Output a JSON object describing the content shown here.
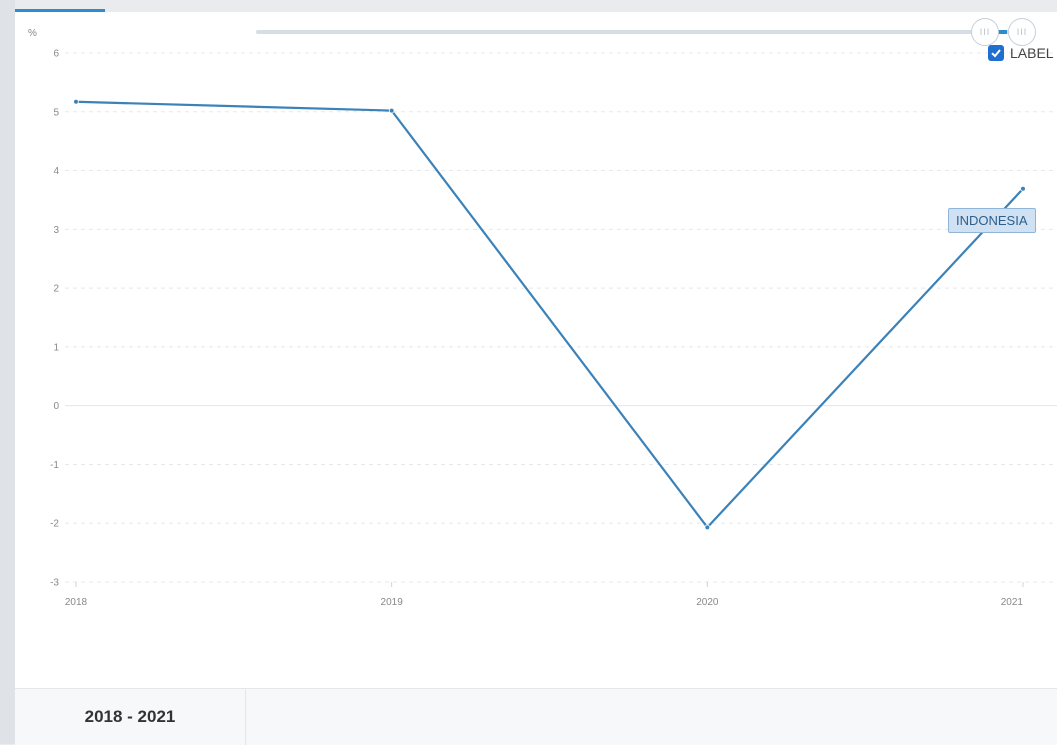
{
  "legend": {
    "label": "LABEL",
    "checked": true
  },
  "range_label": "2018 - 2021",
  "slider": {
    "start_fraction": 0.95,
    "end_fraction": 1.0,
    "handle_glyph": "III"
  },
  "chart_data": {
    "type": "line",
    "ylabel": "%",
    "x": [
      "2018",
      "2019",
      "2020",
      "2021"
    ],
    "series": [
      {
        "name": "INDONESIA",
        "values": [
          5.17,
          5.02,
          -2.07,
          3.69
        ],
        "color": "#3b82b9"
      }
    ],
    "yticks": [
      6,
      5,
      4,
      3,
      2,
      1,
      0,
      -1,
      -2,
      -3
    ],
    "ylim": [
      -3,
      6
    ],
    "grid": true
  }
}
